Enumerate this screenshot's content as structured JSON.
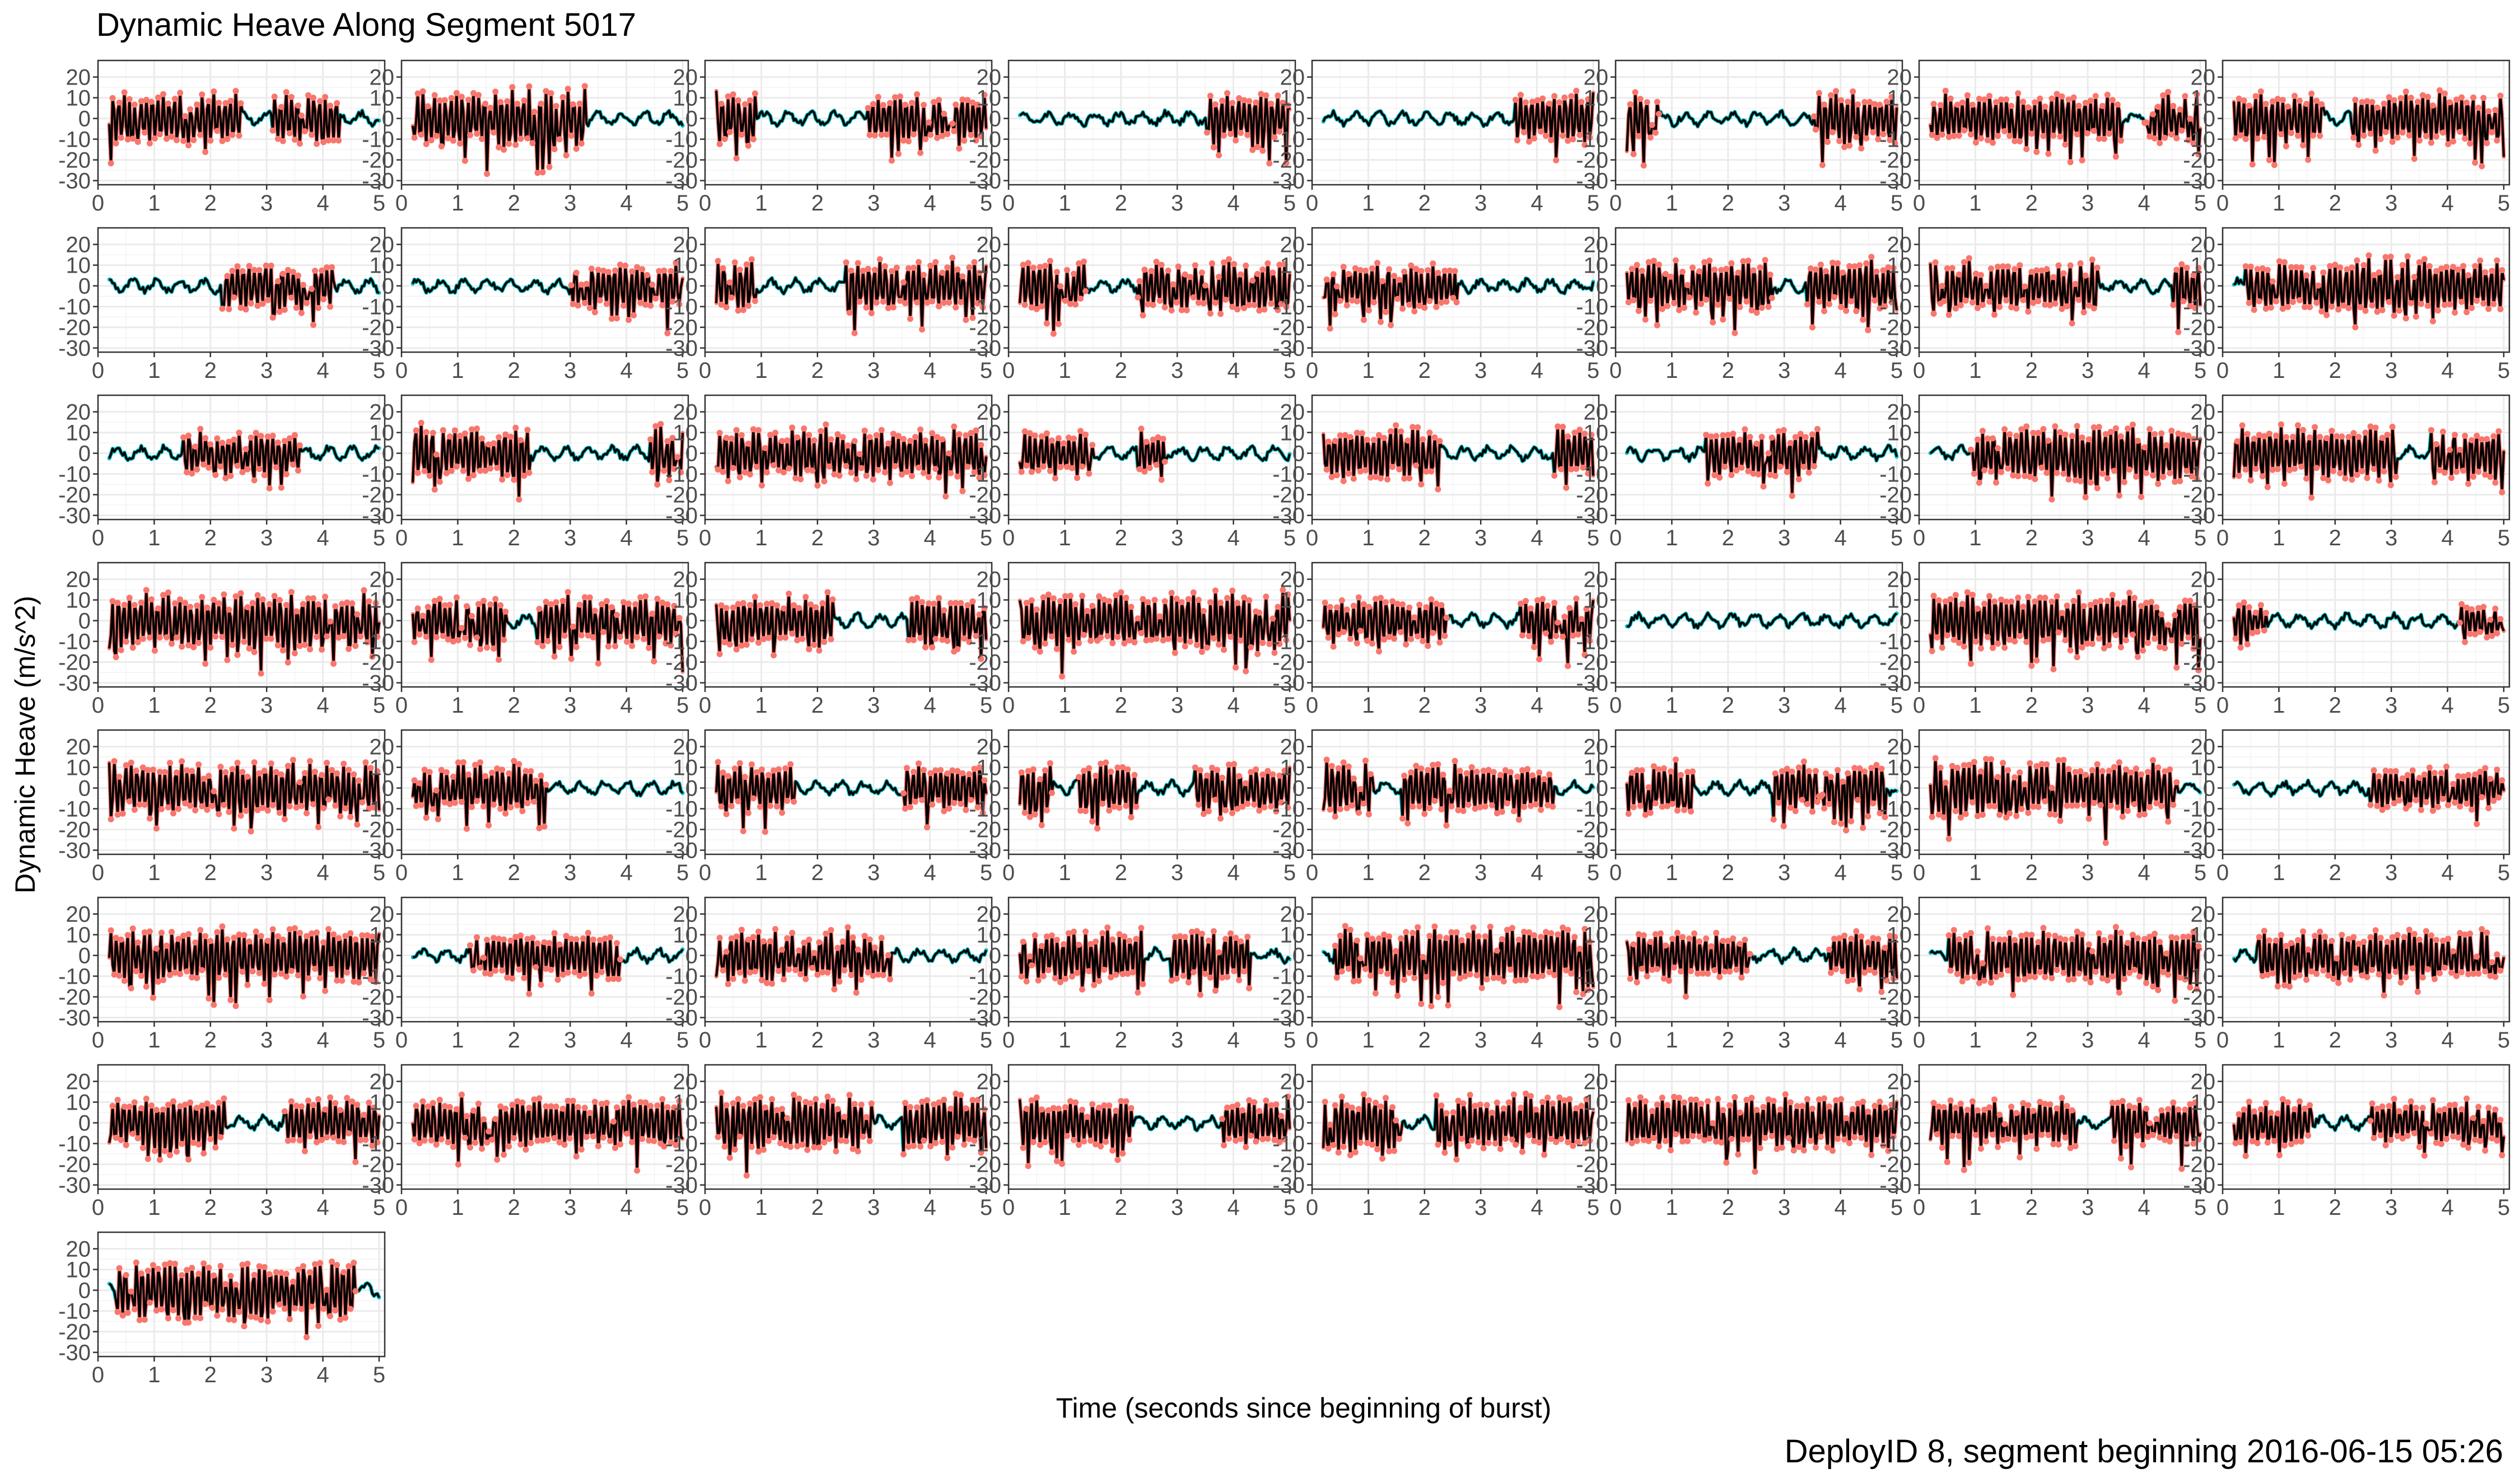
{
  "chart_data": {
    "type": "line",
    "title": "Dynamic Heave Along Segment 5017",
    "xlabel": "Time (seconds since beginning of burst)",
    "ylabel": "Dynamic Heave (m/s^2)",
    "caption": "DeployID 8, segment beginning 2016-06-15 05:26",
    "facet_grid": {
      "columns": 8,
      "panel_count": 57
    },
    "xlim": [
      0,
      5.1
    ],
    "ylim": [
      -32,
      28
    ],
    "x_ticks": [
      0,
      1,
      2,
      3,
      4,
      5
    ],
    "y_ticks": [
      20,
      10,
      0,
      -10,
      -20,
      -30
    ],
    "grid": true,
    "legend": "none",
    "colors": {
      "signal": "#000000",
      "active": "#F8766D",
      "rest": "#00BFC4"
    },
    "panels": [
      {
        "amp": 14,
        "active": [
          [
            0.2,
            5.0
          ]
        ],
        "rest": [
          [
            2.6,
            3.1
          ],
          [
            4.3,
            5.0
          ]
        ],
        "seed": 1
      },
      {
        "amp": 16,
        "active": [
          [
            0.2,
            3.3
          ]
        ],
        "rest": [
          [
            3.3,
            4.2
          ]
        ],
        "seed": 2
      },
      {
        "amp": 14,
        "active": [
          [
            0.2,
            0.9
          ],
          [
            2.9,
            5.0
          ]
        ],
        "rest": [
          [
            0.9,
            2.9
          ]
        ],
        "seed": 3
      },
      {
        "amp": 13,
        "active": [
          [
            3.5,
            5.0
          ]
        ],
        "rest": [
          [
            0.2,
            3.5
          ]
        ],
        "seed": 4
      },
      {
        "amp": 14,
        "active": [
          [
            3.6,
            5.0
          ]
        ],
        "rest": [
          [
            0.2,
            3.6
          ]
        ],
        "seed": 5
      },
      {
        "amp": 14,
        "active": [
          [
            0.2,
            0.8
          ],
          [
            3.5,
            5.0
          ]
        ],
        "rest": [
          [
            0.8,
            3.5
          ]
        ],
        "seed": 6
      },
      {
        "amp": 14,
        "active": [
          [
            0.2,
            3.6
          ],
          [
            4.0,
            5.0
          ]
        ],
        "rest": [
          [
            3.6,
            4.0
          ]
        ],
        "seed": 7
      },
      {
        "amp": 14,
        "active": [
          [
            0.2,
            5.0
          ]
        ],
        "rest": [
          [
            1.8,
            2.3
          ]
        ],
        "seed": 8
      },
      {
        "amp": 13,
        "active": [
          [
            2.2,
            4.2
          ]
        ],
        "rest": [
          [
            0.2,
            2.2
          ],
          [
            4.2,
            5.0
          ]
        ],
        "seed": 9
      },
      {
        "amp": 13,
        "active": [
          [
            3.0,
            5.0
          ]
        ],
        "rest": [
          [
            0.2,
            3.0
          ]
        ],
        "seed": 10
      },
      {
        "amp": 14,
        "active": [
          [
            0.2,
            0.9
          ],
          [
            2.5,
            5.0
          ]
        ],
        "rest": [
          [
            0.9,
            2.5
          ]
        ],
        "seed": 11
      },
      {
        "amp": 14,
        "active": [
          [
            0.2,
            1.4
          ],
          [
            2.3,
            5.0
          ]
        ],
        "rest": [
          [
            1.4,
            2.3
          ]
        ],
        "seed": 12
      },
      {
        "amp": 13,
        "active": [
          [
            0.2,
            2.6
          ]
        ],
        "rest": [
          [
            2.6,
            5.0
          ]
        ],
        "seed": 13
      },
      {
        "amp": 14,
        "active": [
          [
            0.2,
            2.8
          ],
          [
            3.4,
            5.0
          ]
        ],
        "rest": [
          [
            2.8,
            3.4
          ]
        ],
        "seed": 14
      },
      {
        "amp": 14,
        "active": [
          [
            0.2,
            5.0
          ]
        ],
        "rest": [
          [
            3.2,
            4.5
          ]
        ],
        "seed": 15
      },
      {
        "amp": 15,
        "active": [
          [
            0.4,
            5.0
          ]
        ],
        "rest": [
          [
            0.2,
            0.4
          ]
        ],
        "seed": 16
      },
      {
        "amp": 12,
        "active": [
          [
            1.5,
            3.6
          ]
        ],
        "rest": [
          [
            0.2,
            1.5
          ],
          [
            3.6,
            5.0
          ]
        ],
        "seed": 17
      },
      {
        "amp": 15,
        "active": [
          [
            0.2,
            2.3
          ],
          [
            4.4,
            5.0
          ]
        ],
        "rest": [
          [
            2.3,
            4.4
          ]
        ],
        "seed": 18
      },
      {
        "amp": 14,
        "active": [
          [
            0.2,
            5.0
          ]
        ],
        "rest": [],
        "seed": 19
      },
      {
        "amp": 13,
        "active": [
          [
            0.2,
            1.5
          ],
          [
            2.3,
            2.8
          ]
        ],
        "rest": [
          [
            1.5,
            2.3
          ],
          [
            2.8,
            5.0
          ]
        ],
        "seed": 20
      },
      {
        "amp": 14,
        "active": [
          [
            0.2,
            2.3
          ],
          [
            4.3,
            5.0
          ]
        ],
        "rest": [
          [
            2.3,
            4.3
          ]
        ],
        "seed": 21
      },
      {
        "amp": 13,
        "active": [
          [
            1.6,
            3.6
          ]
        ],
        "rest": [
          [
            0.2,
            1.6
          ],
          [
            3.6,
            5.0
          ]
        ],
        "seed": 22
      },
      {
        "amp": 15,
        "active": [
          [
            0.9,
            5.0
          ]
        ],
        "rest": [
          [
            0.2,
            0.9
          ]
        ],
        "seed": 23
      },
      {
        "amp": 14,
        "active": [
          [
            0.2,
            3.1
          ],
          [
            3.7,
            5.0
          ]
        ],
        "rest": [
          [
            3.1,
            3.7
          ]
        ],
        "seed": 24
      },
      {
        "amp": 15,
        "active": [
          [
            0.2,
            5.0
          ]
        ],
        "rest": [],
        "seed": 25
      },
      {
        "amp": 14,
        "active": [
          [
            0.2,
            5.0
          ]
        ],
        "rest": [
          [
            1.9,
            2.4
          ]
        ],
        "seed": 26
      },
      {
        "amp": 14,
        "active": [
          [
            0.2,
            2.3
          ],
          [
            3.6,
            5.0
          ]
        ],
        "rest": [
          [
            2.3,
            3.6
          ]
        ],
        "seed": 27
      },
      {
        "amp": 16,
        "active": [
          [
            0.2,
            5.0
          ]
        ],
        "rest": [],
        "seed": 28
      },
      {
        "amp": 13,
        "active": [
          [
            0.2,
            2.4
          ],
          [
            3.7,
            5.0
          ]
        ],
        "rest": [
          [
            2.4,
            3.7
          ]
        ],
        "seed": 29
      },
      {
        "amp": 6,
        "active": [],
        "rest": [
          [
            0.2,
            5.0
          ]
        ],
        "seed": 30
      },
      {
        "amp": 15,
        "active": [
          [
            0.2,
            5.0
          ]
        ],
        "rest": [],
        "seed": 31
      },
      {
        "amp": 10,
        "active": [
          [
            0.2,
            0.8
          ],
          [
            4.2,
            5.0
          ]
        ],
        "rest": [
          [
            0.8,
            4.2
          ]
        ],
        "seed": 32
      },
      {
        "amp": 14,
        "active": [
          [
            0.2,
            5.0
          ]
        ],
        "rest": [],
        "seed": 33
      },
      {
        "amp": 14,
        "active": [
          [
            0.2,
            2.6
          ]
        ],
        "rest": [
          [
            2.6,
            4.7
          ]
        ],
        "seed": 34
      },
      {
        "amp": 13,
        "active": [
          [
            0.2,
            1.6
          ],
          [
            3.5,
            5.0
          ]
        ],
        "rest": [
          [
            1.6,
            3.5
          ]
        ],
        "seed": 35
      },
      {
        "amp": 13,
        "active": [
          [
            0.2,
            2.3
          ],
          [
            3.3,
            5.0
          ]
        ],
        "rest": [
          [
            0.8,
            1.2
          ],
          [
            2.3,
            3.3
          ]
        ],
        "seed": 36
      },
      {
        "amp": 14,
        "active": [
          [
            0.2,
            5.0
          ]
        ],
        "rest": [
          [
            1.1,
            1.6
          ],
          [
            4.3,
            5.0
          ]
        ],
        "seed": 37
      },
      {
        "amp": 14,
        "active": [
          [
            0.2,
            1.4
          ],
          [
            2.8,
            4.8
          ]
        ],
        "rest": [
          [
            1.4,
            2.8
          ],
          [
            4.8,
            5.0
          ]
        ],
        "seed": 38
      },
      {
        "amp": 15,
        "active": [
          [
            0.2,
            4.6
          ]
        ],
        "rest": [
          [
            4.6,
            5.0
          ]
        ],
        "seed": 39
      },
      {
        "amp": 11,
        "active": [
          [
            2.6,
            5.0
          ]
        ],
        "rest": [
          [
            0.2,
            2.6
          ]
        ],
        "seed": 40
      },
      {
        "amp": 15,
        "active": [
          [
            0.2,
            5.0
          ]
        ],
        "rest": [],
        "seed": 41
      },
      {
        "amp": 12,
        "active": [
          [
            1.2,
            3.9
          ]
        ],
        "rest": [
          [
            0.2,
            1.2
          ],
          [
            3.9,
            5.0
          ]
        ],
        "seed": 42
      },
      {
        "amp": 14,
        "active": [
          [
            0.2,
            3.3
          ]
        ],
        "rest": [
          [
            3.3,
            4.3
          ]
        ],
        "seed": 43
      },
      {
        "amp": 14,
        "active": [
          [
            0.2,
            2.4
          ],
          [
            2.9,
            4.3
          ]
        ],
        "rest": [
          [
            2.4,
            2.9
          ],
          [
            4.3,
            5.0
          ]
        ],
        "seed": 44
      },
      {
        "amp": 15,
        "active": [
          [
            0.4,
            5.0
          ]
        ],
        "rest": [
          [
            0.2,
            0.4
          ]
        ],
        "seed": 45
      },
      {
        "amp": 13,
        "active": [
          [
            0.2,
            2.4
          ],
          [
            3.8,
            5.0
          ]
        ],
        "rest": [
          [
            2.4,
            3.8
          ]
        ],
        "seed": 46
      },
      {
        "amp": 14,
        "active": [
          [
            0.5,
            5.0
          ]
        ],
        "rest": [
          [
            0.2,
            0.5
          ]
        ],
        "seed": 47
      },
      {
        "amp": 14,
        "active": [
          [
            0.6,
            5.0
          ]
        ],
        "rest": [
          [
            0.2,
            0.6
          ]
        ],
        "seed": 48
      },
      {
        "amp": 14,
        "active": [
          [
            0.2,
            2.3
          ],
          [
            3.3,
            5.0
          ]
        ],
        "rest": [
          [
            2.3,
            3.3
          ]
        ],
        "seed": 49
      },
      {
        "amp": 14,
        "active": [
          [
            0.2,
            5.0
          ]
        ],
        "rest": [],
        "seed": 50
      },
      {
        "amp": 15,
        "active": [
          [
            0.2,
            5.0
          ]
        ],
        "rest": [
          [
            3.0,
            3.5
          ]
        ],
        "seed": 51
      },
      {
        "amp": 13,
        "active": [
          [
            0.2,
            2.2
          ],
          [
            3.8,
            5.0
          ]
        ],
        "rest": [
          [
            2.2,
            3.8
          ]
        ],
        "seed": 52
      },
      {
        "amp": 15,
        "active": [
          [
            0.2,
            5.0
          ]
        ],
        "rest": [
          [
            1.6,
            2.2
          ]
        ],
        "seed": 53
      },
      {
        "amp": 14,
        "active": [
          [
            0.2,
            5.0
          ]
        ],
        "rest": [],
        "seed": 54
      },
      {
        "amp": 13,
        "active": [
          [
            0.2,
            2.8
          ],
          [
            3.4,
            5.0
          ]
        ],
        "rest": [
          [
            2.8,
            3.4
          ]
        ],
        "seed": 55
      },
      {
        "amp": 12,
        "active": [
          [
            0.2,
            1.6
          ],
          [
            2.6,
            5.0
          ]
        ],
        "rest": [
          [
            1.6,
            2.6
          ]
        ],
        "seed": 56
      },
      {
        "amp": 16,
        "active": [
          [
            0.3,
            4.6
          ]
        ],
        "rest": [
          [
            0.2,
            0.3
          ],
          [
            4.6,
            5.0
          ]
        ],
        "seed": 57
      }
    ]
  }
}
